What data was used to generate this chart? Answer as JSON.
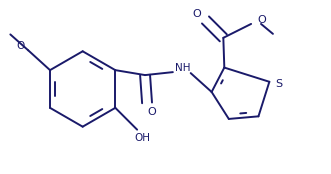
{
  "bg_color": "#ffffff",
  "line_color": "#1a1a6a",
  "line_width": 1.4,
  "font_size": 7.0,
  "figsize": [
    3.31,
    1.74
  ],
  "dpi": 100,
  "xlim": [
    0,
    3.31
  ],
  "ylim": [
    0,
    1.74
  ]
}
